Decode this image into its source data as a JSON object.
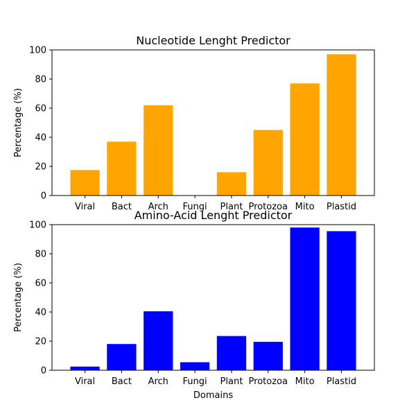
{
  "chart_data": [
    {
      "type": "bar",
      "title": "Nucleotide Lenght Predictor",
      "xlabel": "",
      "ylabel": "Percentage (%)",
      "categories": [
        "Viral",
        "Bact",
        "Arch",
        "Fungi",
        "Plant",
        "Protozoa",
        "Mito",
        "Plastid"
      ],
      "values": [
        17.5,
        37,
        62,
        0,
        16,
        45,
        77,
        97
      ],
      "ylim": [
        0,
        100
      ],
      "yticks": [
        "0",
        "20",
        "40",
        "60",
        "80",
        "100"
      ],
      "color": "#ffa500",
      "grid": false
    },
    {
      "type": "bar",
      "title": "Amino-Acid Lenght Predictor",
      "xlabel": "Domains",
      "ylabel": "Percentage (%)",
      "categories": [
        "Viral",
        "Bact",
        "Arch",
        "Fungi",
        "Plant",
        "Protozoa",
        "Mito",
        "Plastid"
      ],
      "values": [
        2.5,
        18,
        40.5,
        5.5,
        23.5,
        19.5,
        98,
        95.5
      ],
      "ylim": [
        0,
        100
      ],
      "yticks": [
        "0",
        "20",
        "40",
        "60",
        "80",
        "100"
      ],
      "color": "#0000ff",
      "grid": false
    }
  ]
}
